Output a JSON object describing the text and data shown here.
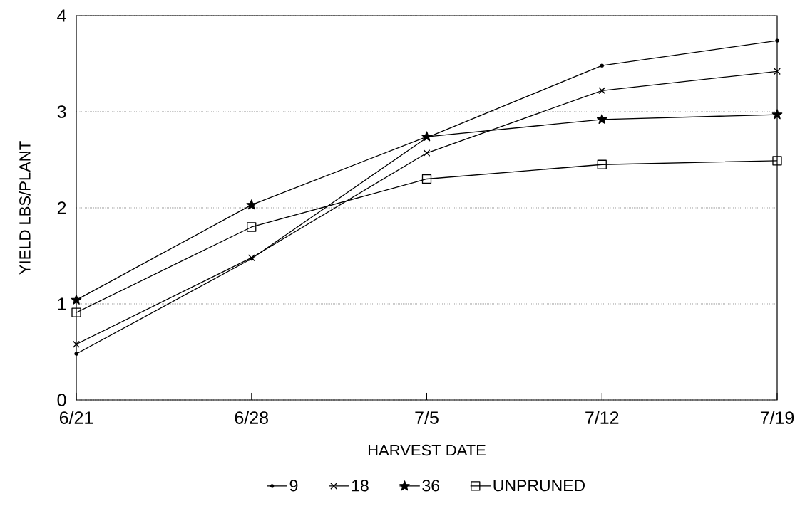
{
  "chart_data": {
    "type": "line",
    "xlabel": "HARVEST DATE",
    "ylabel": "YIELD  LBS/PLANT",
    "categories": [
      "6/21",
      "6/28",
      "7/5",
      "7/12",
      "7/19"
    ],
    "series": [
      {
        "name": "9",
        "color": "#000000",
        "marker": "circle",
        "values": [
          0.48,
          1.47,
          2.73,
          3.48,
          3.74
        ]
      },
      {
        "name": "18",
        "color": "#000000",
        "marker": "cross",
        "values": [
          0.58,
          1.48,
          2.57,
          3.22,
          3.42
        ]
      },
      {
        "name": "36",
        "color": "#000000",
        "marker": "star",
        "values": [
          1.04,
          2.03,
          2.74,
          2.92,
          2.97
        ]
      },
      {
        "name": "UNPRUNED",
        "color": "#000000",
        "marker": "square",
        "values": [
          0.91,
          1.8,
          2.3,
          2.45,
          2.49
        ]
      }
    ],
    "ylim": [
      0,
      4
    ],
    "yticks": [
      0,
      1,
      2,
      3,
      4
    ],
    "grid": "y",
    "legend": "bottom",
    "line_style": "solid"
  }
}
